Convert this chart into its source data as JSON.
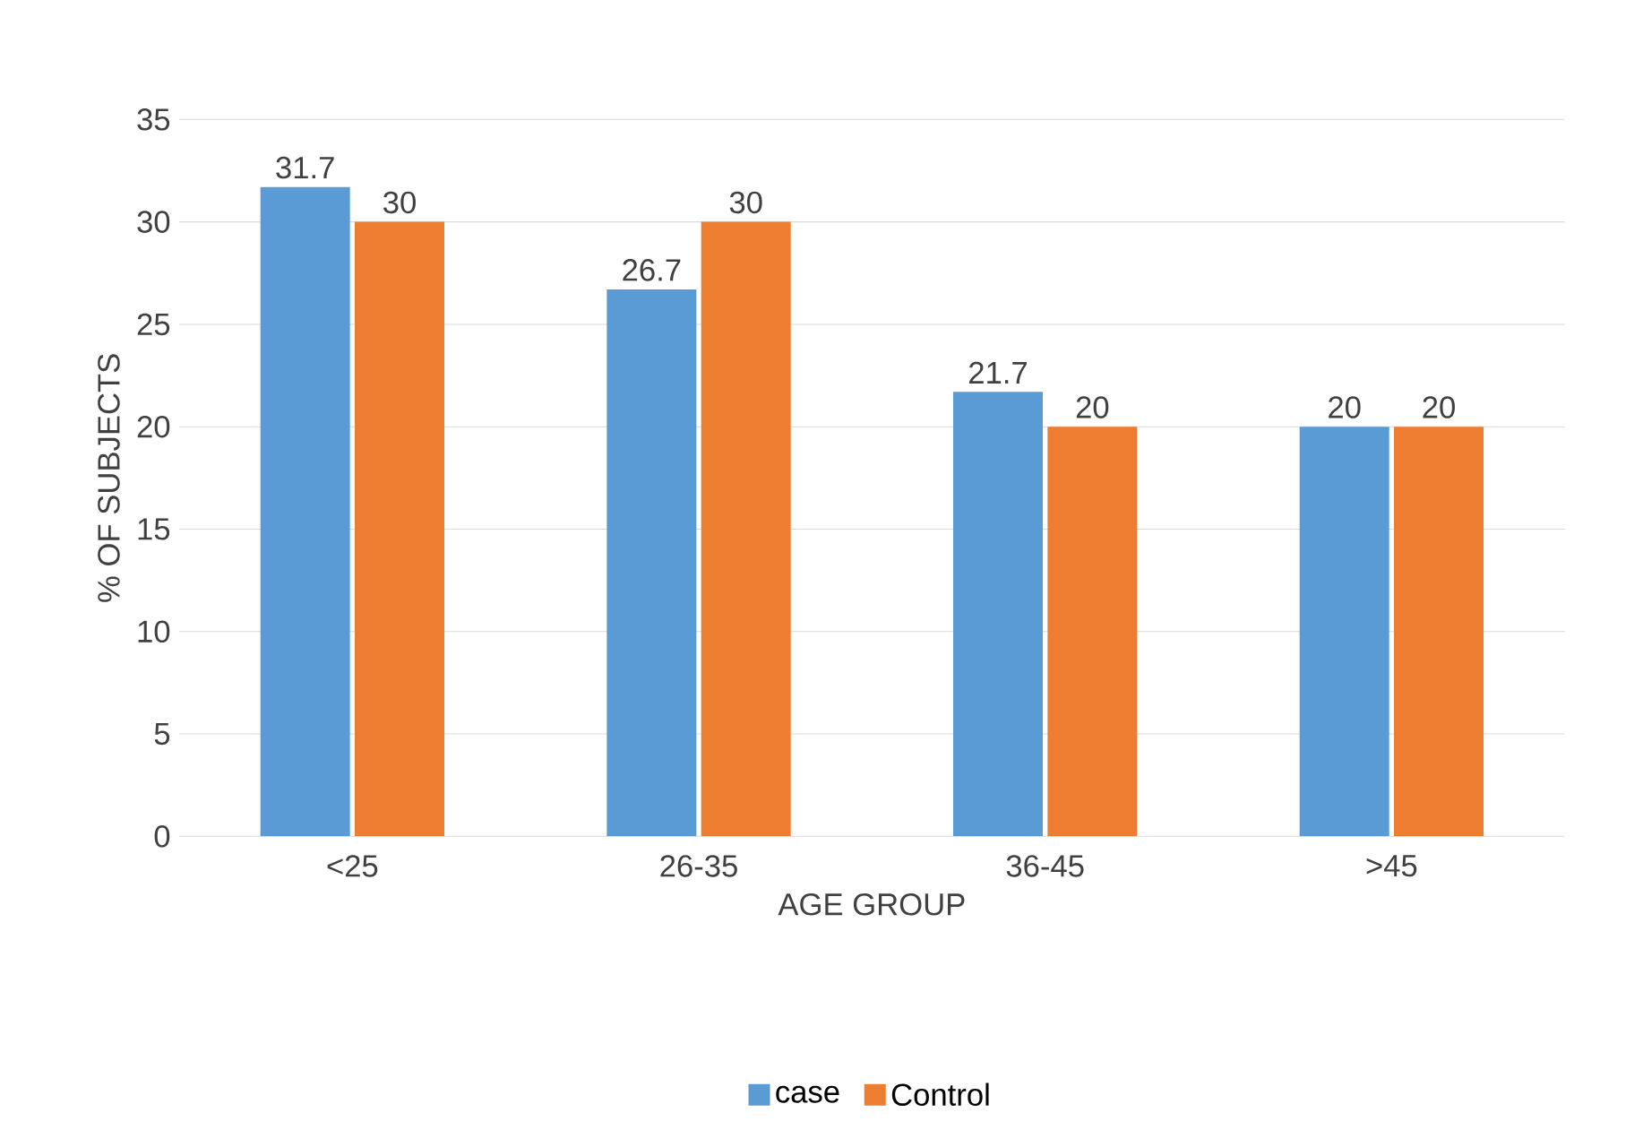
{
  "chart_data": {
    "type": "bar",
    "xlabel": "AGE GROUP",
    "ylabel": "% OF SUBJECTS",
    "categories": [
      "<25",
      "26-35",
      "36-45",
      ">45"
    ],
    "series": [
      {
        "name": "case",
        "color": "#5b9bd5",
        "values": [
          31.7,
          26.7,
          21.7,
          20
        ]
      },
      {
        "name": "Control",
        "color": "#ed7d31",
        "values": [
          30,
          30,
          20,
          20
        ]
      }
    ],
    "ylim": [
      0,
      35
    ],
    "yticks": [
      0,
      5,
      10,
      15,
      20,
      25,
      30,
      35
    ],
    "grid": "y",
    "legend": "bottom",
    "data_labels": true
  }
}
